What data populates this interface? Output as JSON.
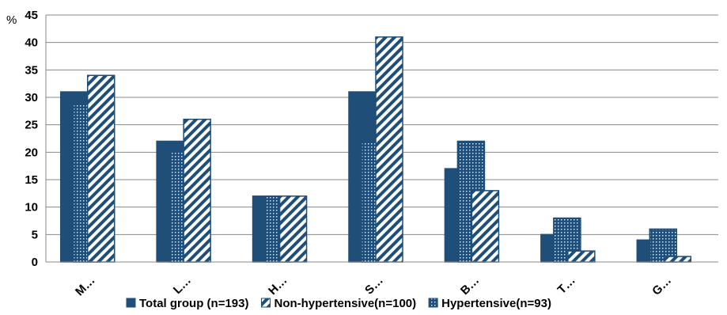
{
  "chart_data": {
    "type": "bar",
    "ylabel": "%",
    "ylim": [
      0,
      45
    ],
    "ytick_step": 5,
    "categories": [
      "M…",
      "L…",
      "H…",
      "S…",
      "B…",
      "T…",
      "G…"
    ],
    "series": [
      {
        "name": "Total  group (n=193)",
        "values": [
          31,
          22,
          12,
          31,
          17,
          5,
          4
        ],
        "color": "#1f4e79",
        "pattern": "solid"
      },
      {
        "name": "Non-hypertensive(n=100)",
        "values": [
          34,
          26,
          12,
          41,
          13,
          2,
          1
        ],
        "color": "#1f4e79",
        "pattern": "diagonal"
      },
      {
        "name": "Hypertensive(n=93)",
        "values": [
          29,
          20,
          12,
          22,
          22,
          8,
          6
        ],
        "color": "#1f4e79",
        "pattern": "dotted"
      }
    ],
    "grid": true,
    "legend_position": "bottom"
  }
}
